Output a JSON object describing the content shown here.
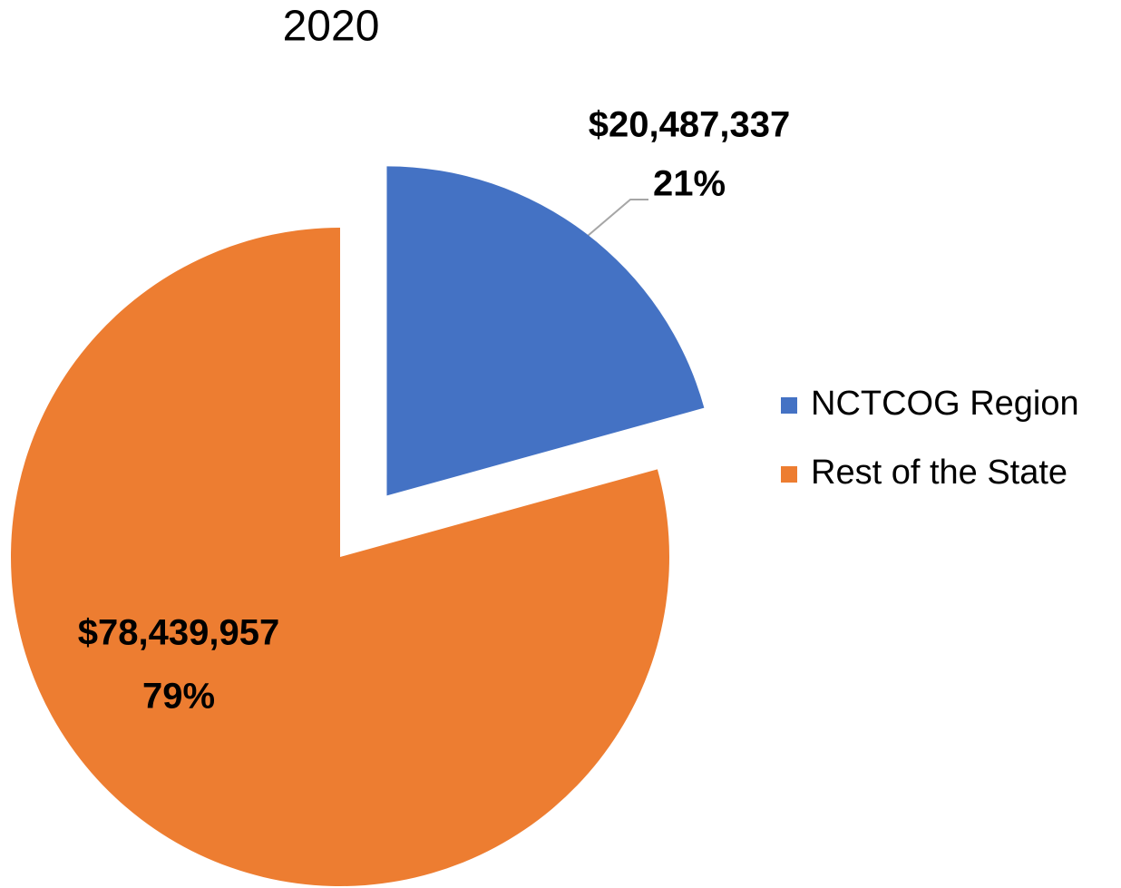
{
  "chart_data": {
    "type": "pie",
    "title": "2020",
    "categories": [
      "NCTCOG Region",
      "Rest of the State"
    ],
    "values": [
      20487337,
      78439957
    ],
    "value_labels": [
      "$20,487,337",
      "$78,439,957"
    ],
    "percentages": [
      21,
      79
    ],
    "percentage_labels": [
      "21%",
      "79%"
    ],
    "colors": [
      "#4472c4",
      "#ed7d31"
    ],
    "legend": "right"
  }
}
